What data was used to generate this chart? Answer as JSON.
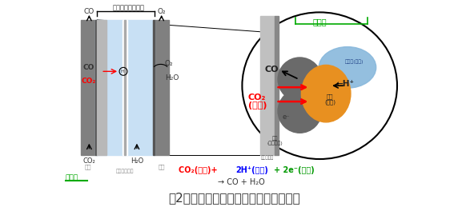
{
  "title": "図2：今回開発した電気化学セルの概略",
  "title_fontsize": 11,
  "title_color": "#333333",
  "bg_color": "#ffffff",
  "caption_top": "固体高分子形セル",
  "label_negative": "負極",
  "label_positive": "正極",
  "label_solid_membrane": "固体高分子膜",
  "label_catalyst_green": "触媒層",
  "circle_label_catalyst": "触媒層",
  "circle_label_electrolyte": "電解質(液体)",
  "circle_label_catalyst_solid": "触媒\n(固体)",
  "circle_label_body": "母体\n(カーボン)",
  "circle_label_gas_diffusion": "ガス拡散層",
  "formula_co2": "CO₂(気体)+ ",
  "formula_2h": "2H⁺(液体)",
  "formula_2e": "+ 2e⁻(固体)",
  "formula_line2": "→ CO + H₂O"
}
